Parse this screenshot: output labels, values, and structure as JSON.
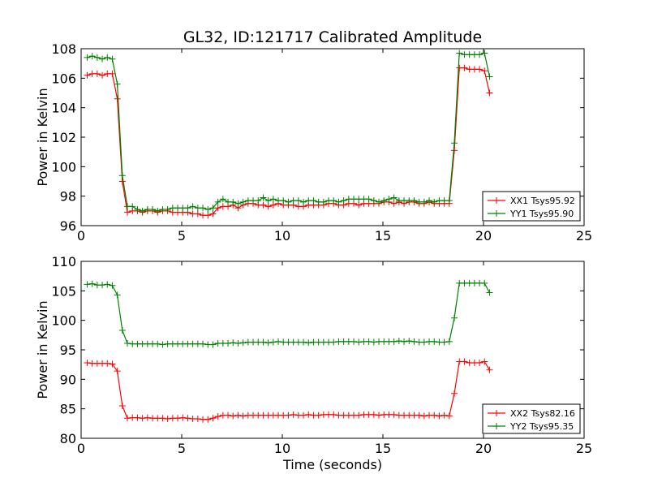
{
  "chart_data": [
    {
      "type": "line",
      "title": "GL32, ID:121717 Calibrated Amplitude",
      "xlabel": "",
      "ylabel": "Power in Kelvin",
      "xlim": [
        0,
        25
      ],
      "ylim": [
        96,
        108
      ],
      "xticks": [
        0,
        5,
        10,
        15,
        20,
        25
      ],
      "yticks": [
        96,
        98,
        100,
        102,
        104,
        106,
        108
      ],
      "legend_position": "lower-right",
      "series": [
        {
          "name": "XX1 Tsys95.92",
          "color": "#ff0000",
          "x": [
            0.3,
            0.55,
            0.8,
            1.05,
            1.3,
            1.55,
            1.8,
            2.05,
            2.3,
            2.55,
            2.8,
            3.05,
            3.3,
            3.55,
            3.8,
            4.05,
            4.3,
            4.55,
            4.8,
            5.05,
            5.3,
            5.55,
            5.8,
            6.05,
            6.3,
            6.55,
            6.8,
            7.05,
            7.3,
            7.55,
            7.8,
            8.05,
            8.3,
            8.55,
            8.8,
            9.05,
            9.3,
            9.55,
            9.8,
            10.05,
            10.3,
            10.55,
            10.8,
            11.05,
            11.3,
            11.55,
            11.8,
            12.05,
            12.3,
            12.55,
            12.8,
            13.05,
            13.3,
            13.55,
            13.8,
            14.05,
            14.3,
            14.55,
            14.8,
            15.05,
            15.3,
            15.55,
            15.8,
            16.05,
            16.3,
            16.55,
            16.8,
            17.05,
            17.3,
            17.55,
            17.8,
            18.05,
            18.3,
            18.55,
            18.8,
            19.05,
            19.3,
            19.55,
            19.8,
            20.05,
            20.3
          ],
          "y": [
            106.2,
            106.3,
            106.3,
            106.2,
            106.3,
            106.3,
            104.6,
            99.0,
            96.9,
            97.0,
            97.0,
            96.9,
            97.0,
            97.0,
            96.9,
            97.0,
            97.0,
            96.9,
            96.9,
            96.9,
            96.9,
            96.8,
            96.8,
            96.7,
            96.7,
            96.8,
            97.2,
            97.3,
            97.3,
            97.4,
            97.2,
            97.4,
            97.5,
            97.5,
            97.4,
            97.4,
            97.3,
            97.4,
            97.5,
            97.4,
            97.4,
            97.4,
            97.3,
            97.3,
            97.4,
            97.4,
            97.4,
            97.4,
            97.5,
            97.5,
            97.4,
            97.4,
            97.5,
            97.5,
            97.4,
            97.5,
            97.5,
            97.5,
            97.5,
            97.6,
            97.6,
            97.5,
            97.6,
            97.5,
            97.6,
            97.6,
            97.5,
            97.5,
            97.6,
            97.5,
            97.5,
            97.5,
            97.5,
            101.1,
            106.7,
            106.7,
            106.6,
            106.6,
            106.6,
            106.5,
            105.0
          ]
        },
        {
          "name": "YY1 Tsys95.90",
          "color": "#008000",
          "x": [
            0.3,
            0.55,
            0.8,
            1.05,
            1.3,
            1.55,
            1.8,
            2.05,
            2.3,
            2.55,
            2.8,
            3.05,
            3.3,
            3.55,
            3.8,
            4.05,
            4.3,
            4.55,
            4.8,
            5.05,
            5.3,
            5.55,
            5.8,
            6.05,
            6.3,
            6.55,
            6.8,
            7.05,
            7.3,
            7.55,
            7.8,
            8.05,
            8.3,
            8.55,
            8.8,
            9.05,
            9.3,
            9.55,
            9.8,
            10.05,
            10.3,
            10.55,
            10.8,
            11.05,
            11.3,
            11.55,
            11.8,
            12.05,
            12.3,
            12.55,
            12.8,
            13.05,
            13.3,
            13.55,
            13.8,
            14.05,
            14.3,
            14.55,
            14.8,
            15.05,
            15.3,
            15.55,
            15.8,
            16.05,
            16.3,
            16.55,
            16.8,
            17.05,
            17.3,
            17.55,
            17.8,
            18.05,
            18.3,
            18.55,
            18.8,
            19.05,
            19.3,
            19.55,
            19.8,
            20.05,
            20.3
          ],
          "y": [
            107.4,
            107.5,
            107.4,
            107.3,
            107.4,
            107.3,
            105.6,
            99.4,
            97.3,
            97.3,
            97.1,
            97.0,
            97.1,
            97.1,
            97.0,
            97.1,
            97.1,
            97.2,
            97.2,
            97.2,
            97.2,
            97.3,
            97.2,
            97.2,
            97.1,
            97.2,
            97.6,
            97.8,
            97.6,
            97.6,
            97.5,
            97.6,
            97.7,
            97.7,
            97.7,
            97.9,
            97.7,
            97.8,
            97.7,
            97.7,
            97.6,
            97.7,
            97.7,
            97.6,
            97.7,
            97.7,
            97.6,
            97.6,
            97.7,
            97.7,
            97.6,
            97.7,
            97.8,
            97.8,
            97.8,
            97.8,
            97.8,
            97.7,
            97.6,
            97.7,
            97.8,
            97.9,
            97.7,
            97.7,
            97.7,
            97.7,
            97.6,
            97.6,
            97.7,
            97.6,
            97.7,
            97.7,
            97.7,
            101.6,
            107.7,
            107.6,
            107.6,
            107.6,
            107.6,
            107.7,
            106.1
          ]
        }
      ]
    },
    {
      "type": "line",
      "title": "",
      "xlabel": "Time (seconds)",
      "ylabel": "Power in Kelvin",
      "xlim": [
        0,
        25
      ],
      "ylim": [
        80,
        110
      ],
      "xticks": [
        0,
        5,
        10,
        15,
        20,
        25
      ],
      "yticks": [
        80,
        85,
        90,
        95,
        100,
        105,
        110
      ],
      "legend_position": "lower-right",
      "series": [
        {
          "name": "XX2 Tsys82.16",
          "color": "#ff0000",
          "x": [
            0.3,
            0.55,
            0.8,
            1.05,
            1.3,
            1.55,
            1.8,
            2.05,
            2.3,
            2.55,
            2.8,
            3.05,
            3.3,
            3.55,
            3.8,
            4.05,
            4.3,
            4.55,
            4.8,
            5.05,
            5.3,
            5.55,
            5.8,
            6.05,
            6.3,
            6.55,
            6.8,
            7.05,
            7.3,
            7.55,
            7.8,
            8.05,
            8.3,
            8.55,
            8.8,
            9.05,
            9.3,
            9.55,
            9.8,
            10.05,
            10.3,
            10.55,
            10.8,
            11.05,
            11.3,
            11.55,
            11.8,
            12.05,
            12.3,
            12.55,
            12.8,
            13.05,
            13.3,
            13.55,
            13.8,
            14.05,
            14.3,
            14.55,
            14.8,
            15.05,
            15.3,
            15.55,
            15.8,
            16.05,
            16.3,
            16.55,
            16.8,
            17.05,
            17.3,
            17.55,
            17.8,
            18.05,
            18.3,
            18.55,
            18.8,
            19.05,
            19.3,
            19.55,
            19.8,
            20.05,
            20.3
          ],
          "y": [
            92.8,
            92.7,
            92.7,
            92.7,
            92.7,
            92.6,
            91.4,
            85.5,
            83.4,
            83.5,
            83.5,
            83.4,
            83.5,
            83.4,
            83.4,
            83.4,
            83.3,
            83.4,
            83.4,
            83.5,
            83.4,
            83.3,
            83.3,
            83.2,
            83.2,
            83.4,
            83.7,
            83.9,
            83.9,
            83.8,
            83.9,
            83.8,
            83.9,
            83.9,
            83.9,
            83.9,
            83.9,
            83.9,
            83.9,
            83.9,
            83.9,
            84.0,
            83.9,
            83.9,
            84.0,
            83.9,
            83.9,
            84.0,
            84.0,
            84.0,
            83.9,
            83.9,
            83.9,
            83.9,
            83.9,
            84.0,
            84.0,
            84.0,
            83.9,
            84.0,
            84.0,
            84.0,
            83.9,
            83.9,
            83.9,
            83.9,
            83.9,
            83.8,
            83.9,
            83.9,
            83.8,
            83.9,
            83.8,
            87.6,
            93.0,
            93.0,
            92.8,
            92.8,
            92.8,
            93.0,
            91.6
          ]
        },
        {
          "name": "YY2 Tsys95.35",
          "color": "#008000",
          "x": [
            0.3,
            0.55,
            0.8,
            1.05,
            1.3,
            1.55,
            1.8,
            2.05,
            2.3,
            2.55,
            2.8,
            3.05,
            3.3,
            3.55,
            3.8,
            4.05,
            4.3,
            4.55,
            4.8,
            5.05,
            5.3,
            5.55,
            5.8,
            6.05,
            6.3,
            6.55,
            6.8,
            7.05,
            7.3,
            7.55,
            7.8,
            8.05,
            8.3,
            8.55,
            8.8,
            9.05,
            9.3,
            9.55,
            9.8,
            10.05,
            10.3,
            10.55,
            10.8,
            11.05,
            11.3,
            11.55,
            11.8,
            12.05,
            12.3,
            12.55,
            12.8,
            13.05,
            13.3,
            13.55,
            13.8,
            14.05,
            14.3,
            14.55,
            14.8,
            15.05,
            15.3,
            15.55,
            15.8,
            16.05,
            16.3,
            16.55,
            16.8,
            17.05,
            17.3,
            17.55,
            17.8,
            18.05,
            18.3,
            18.55,
            18.8,
            19.05,
            19.3,
            19.55,
            19.8,
            20.05,
            20.3
          ],
          "y": [
            106.1,
            106.2,
            106.0,
            106.0,
            106.1,
            105.9,
            104.3,
            98.3,
            96.1,
            96.0,
            96.0,
            96.0,
            96.0,
            96.0,
            96.0,
            95.9,
            96.0,
            96.0,
            96.0,
            96.0,
            96.0,
            96.0,
            96.0,
            96.0,
            95.9,
            95.9,
            96.1,
            96.1,
            96.1,
            96.2,
            96.1,
            96.2,
            96.3,
            96.3,
            96.3,
            96.3,
            96.2,
            96.3,
            96.4,
            96.3,
            96.3,
            96.3,
            96.3,
            96.3,
            96.2,
            96.3,
            96.3,
            96.3,
            96.3,
            96.3,
            96.4,
            96.4,
            96.4,
            96.4,
            96.3,
            96.4,
            96.4,
            96.3,
            96.4,
            96.4,
            96.4,
            96.4,
            96.5,
            96.4,
            96.5,
            96.4,
            96.3,
            96.3,
            96.4,
            96.4,
            96.3,
            96.3,
            96.4,
            100.4,
            106.3,
            106.3,
            106.3,
            106.3,
            106.3,
            106.3,
            104.7
          ]
        }
      ]
    }
  ]
}
